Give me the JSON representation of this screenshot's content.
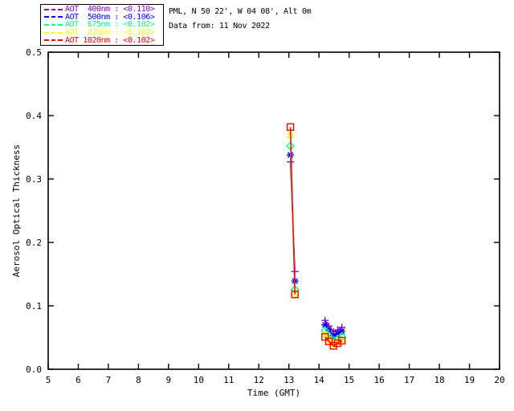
{
  "header": {
    "title": "PML, N 50 22', W 04 08', Alt 0m",
    "subtitle": "Data from: 11 Nov 2022",
    "text_color": "#000000"
  },
  "legend": {
    "position": "top-left-outside-plot",
    "border_color": "#000000"
  },
  "chart_data": {
    "type": "line",
    "title": "PML, N 50 22', W 04 08', Alt 0m",
    "subtitle": "Data from: 11 Nov 2022",
    "xlabel": "Time (GMT)",
    "ylabel": "Aerosol Optical Thickness",
    "xlim": [
      5,
      20
    ],
    "ylim": [
      0.0,
      0.5
    ],
    "grid": false,
    "axis_color": "#000000",
    "xticks": {
      "values": [
        5,
        6,
        7,
        8,
        9,
        10,
        11,
        12,
        13,
        14,
        15,
        16,
        17,
        18,
        19,
        20
      ],
      "labels": [
        "5",
        "6",
        "7",
        "8",
        "9",
        "10",
        "11",
        "12",
        "13",
        "14",
        "15",
        "16",
        "17",
        "18",
        "19",
        "20"
      ]
    },
    "yticks": {
      "values": [
        0.0,
        0.1,
        0.2,
        0.3,
        0.4,
        0.5
      ],
      "labels": [
        "0.0",
        "0.1",
        "0.2",
        "0.3",
        "0.4",
        "0.5"
      ]
    },
    "series": [
      {
        "name": "AOT 400nm",
        "wavelength_nm": 400,
        "mean_label": "<0.110>",
        "legend_label": "AOT  400nm : <0.110>",
        "color": "#9400d3",
        "marker": "plus",
        "segments": [
          {
            "x": [
              13.05,
              13.2
            ],
            "y": [
              0.327,
              0.154
            ]
          },
          {
            "x": [
              14.2,
              14.33,
              14.48,
              14.62,
              14.76
            ],
            "y": [
              0.077,
              0.068,
              0.059,
              0.062,
              0.066
            ]
          }
        ]
      },
      {
        "name": "AOT 500nm",
        "wavelength_nm": 500,
        "mean_label": "<0.106>",
        "legend_label": "AOT  500nm : <0.106>",
        "color": "#0000ff",
        "marker": "asterisk",
        "segments": [
          {
            "x": [
              13.05,
              13.2
            ],
            "y": [
              0.338,
              0.139
            ]
          },
          {
            "x": [
              14.2,
              14.33,
              14.48,
              14.62,
              14.76
            ],
            "y": [
              0.07,
              0.062,
              0.053,
              0.056,
              0.06
            ]
          }
        ]
      },
      {
        "name": "AOT 675nm",
        "wavelength_nm": 675,
        "mean_label": "<0.102>",
        "legend_label": "AOT  675nm : <0.102>",
        "color": "#00ff7f",
        "marker": "diamond",
        "segments": [
          {
            "x": [
              13.05,
              13.2
            ],
            "y": [
              0.352,
              0.126
            ]
          },
          {
            "x": [
              14.2,
              14.33,
              14.48,
              14.62,
              14.76
            ],
            "y": [
              0.061,
              0.052,
              0.045,
              0.048,
              0.052
            ]
          }
        ]
      },
      {
        "name": "AOT 870nm",
        "wavelength_nm": 870,
        "mean_label": "AOT  870nm : <0.102>",
        "legend_label": "AOT  870nm : <0.102>",
        "color": "#ffff00",
        "marker": "triangle",
        "segments": [
          {
            "x": [
              13.05,
              13.2
            ],
            "y": [
              0.37,
              0.12
            ]
          },
          {
            "x": [
              14.2,
              14.33,
              14.48,
              14.62,
              14.76
            ],
            "y": [
              0.055,
              0.047,
              0.04,
              0.043,
              0.047
            ]
          }
        ]
      },
      {
        "name": "AOT 1020nm",
        "wavelength_nm": 1020,
        "mean_label": "<0.102>",
        "legend_label": "AOT 1020nm : <0.102>",
        "color": "#ff0000",
        "marker": "square",
        "segments": [
          {
            "x": [
              13.05,
              13.2
            ],
            "y": [
              0.382,
              0.118
            ]
          },
          {
            "x": [
              14.2,
              14.33,
              14.48,
              14.62,
              14.76
            ],
            "y": [
              0.051,
              0.044,
              0.037,
              0.041,
              0.045
            ]
          }
        ]
      }
    ]
  }
}
